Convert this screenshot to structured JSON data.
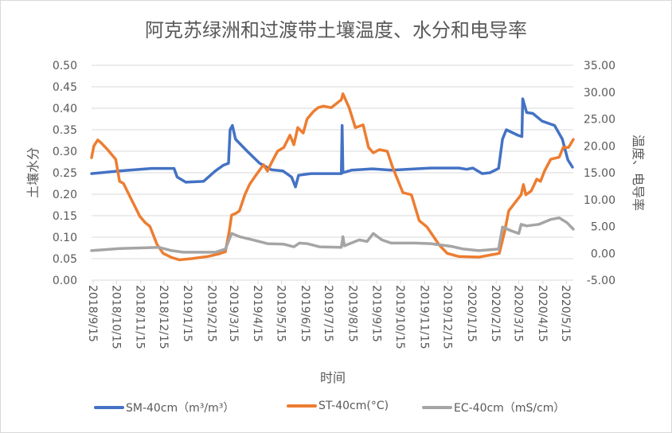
{
  "chart_data": {
    "type": "line",
    "title": "阿克苏绿洲和过渡带土壤温度、水分和电导率",
    "xlabel": "时间",
    "ylabel_left": "土壤水分",
    "ylabel_right": "温度、电导率",
    "ylim_left": [
      0,
      0.5
    ],
    "ylim_right": [
      -5,
      35
    ],
    "yticks_left": [
      "0.00",
      "0.05",
      "0.10",
      "0.15",
      "0.20",
      "0.25",
      "0.30",
      "0.35",
      "0.40",
      "0.45",
      "0.50"
    ],
    "yticks_right": [
      "-5.00",
      "0.00",
      "5.00",
      "10.00",
      "15.00",
      "20.00",
      "25.00",
      "30.00",
      "35.00"
    ],
    "xlim": [
      "2018-09-13",
      "2020-05-24"
    ],
    "xticks": [
      "2018/9/15",
      "2018/10/15",
      "2018/11/15",
      "2018/12/15",
      "2019/1/15",
      "2019/2/15",
      "2019/3/15",
      "2019/4/15",
      "2019/5/15",
      "2019/6/15",
      "2019/7/15",
      "2019/8/15",
      "2019/9/15",
      "2019/10/15",
      "2019/11/15",
      "2019/12/15",
      "2020/1/15",
      "2020/2/15",
      "2020/3/15",
      "2020/4/15",
      "2020/5/15"
    ],
    "grid": true,
    "legend_position": "bottom",
    "series": [
      {
        "name": "SM-40cm（m³/m³）",
        "axis": "left",
        "color": "#4472c4",
        "points": [
          [
            "2018-09-13",
            0.248
          ],
          [
            "2018-10-19",
            0.254
          ],
          [
            "2018-11-29",
            0.26
          ],
          [
            "2018-12-28",
            0.26
          ],
          [
            "2019-01-01",
            0.24
          ],
          [
            "2019-01-12",
            0.228
          ],
          [
            "2019-02-04",
            0.23
          ],
          [
            "2019-02-19",
            0.254
          ],
          [
            "2019-03-01",
            0.267
          ],
          [
            "2019-03-08",
            0.272
          ],
          [
            "2019-03-10",
            0.35
          ],
          [
            "2019-03-13",
            0.36
          ],
          [
            "2019-03-17",
            0.328
          ],
          [
            "2019-04-01",
            0.3
          ],
          [
            "2019-04-17",
            0.272
          ],
          [
            "2019-05-02",
            0.257
          ],
          [
            "2019-05-17",
            0.254
          ],
          [
            "2019-05-28",
            0.24
          ],
          [
            "2019-06-02",
            0.217
          ],
          [
            "2019-06-06",
            0.244
          ],
          [
            "2019-06-22",
            0.248
          ],
          [
            "2019-07-31",
            0.248
          ],
          [
            "2019-08-01",
            0.36
          ],
          [
            "2019-08-02",
            0.25
          ],
          [
            "2019-08-13",
            0.256
          ],
          [
            "2019-09-09",
            0.259
          ],
          [
            "2019-10-03",
            0.256
          ],
          [
            "2019-11-23",
            0.261
          ],
          [
            "2019-12-29",
            0.261
          ],
          [
            "2020-01-08",
            0.258
          ],
          [
            "2020-01-16",
            0.261
          ],
          [
            "2020-01-28",
            0.248
          ],
          [
            "2020-02-07",
            0.25
          ],
          [
            "2020-02-18",
            0.26
          ],
          [
            "2020-02-23",
            0.328
          ],
          [
            "2020-02-28",
            0.35
          ],
          [
            "2020-03-14",
            0.337
          ],
          [
            "2020-03-19",
            0.334
          ],
          [
            "2020-03-20",
            0.422
          ],
          [
            "2020-03-25",
            0.39
          ],
          [
            "2020-04-02",
            0.388
          ],
          [
            "2020-04-14",
            0.37
          ],
          [
            "2020-04-30",
            0.36
          ],
          [
            "2020-05-10",
            0.328
          ],
          [
            "2020-05-17",
            0.28
          ],
          [
            "2020-05-23",
            0.263
          ]
        ]
      },
      {
        "name": "ST-40cm(°C)",
        "axis": "right",
        "color": "#ed7d31",
        "points": [
          [
            "2018-09-13",
            17.8
          ],
          [
            "2018-09-16",
            20.0
          ],
          [
            "2018-09-21",
            21.1
          ],
          [
            "2018-09-25",
            20.6
          ],
          [
            "2018-10-03",
            19.4
          ],
          [
            "2018-10-14",
            17.5
          ],
          [
            "2018-10-19",
            13.4
          ],
          [
            "2018-10-24",
            13.0
          ],
          [
            "2018-11-03",
            10.1
          ],
          [
            "2018-11-14",
            6.9
          ],
          [
            "2018-11-21",
            5.7
          ],
          [
            "2018-11-27",
            5.0
          ],
          [
            "2018-12-06",
            1.7
          ],
          [
            "2018-12-14",
            0.0
          ],
          [
            "2018-12-25",
            -0.8
          ],
          [
            "2019-01-04",
            -1.2
          ],
          [
            "2019-01-19",
            -1.0
          ],
          [
            "2019-02-09",
            -0.6
          ],
          [
            "2019-02-24",
            -0.1
          ],
          [
            "2019-03-04",
            0.3
          ],
          [
            "2019-03-09",
            4.2
          ],
          [
            "2019-03-12",
            7.1
          ],
          [
            "2019-03-17",
            7.4
          ],
          [
            "2019-03-22",
            7.9
          ],
          [
            "2019-03-29",
            10.9
          ],
          [
            "2019-04-04",
            12.8
          ],
          [
            "2019-04-11",
            14.3
          ],
          [
            "2019-04-22",
            16.5
          ],
          [
            "2019-04-27",
            15.3
          ],
          [
            "2019-05-02",
            16.8
          ],
          [
            "2019-05-10",
            19.0
          ],
          [
            "2019-05-18",
            19.7
          ],
          [
            "2019-05-26",
            22.0
          ],
          [
            "2019-05-31",
            20.2
          ],
          [
            "2019-06-05",
            23.4
          ],
          [
            "2019-06-12",
            22.4
          ],
          [
            "2019-06-17",
            25.0
          ],
          [
            "2019-06-25",
            26.4
          ],
          [
            "2019-07-01",
            27.1
          ],
          [
            "2019-07-08",
            27.4
          ],
          [
            "2019-07-18",
            27.1
          ],
          [
            "2019-07-25",
            27.9
          ],
          [
            "2019-07-31",
            28.6
          ],
          [
            "2019-08-02",
            29.7
          ],
          [
            "2019-08-10",
            27.1
          ],
          [
            "2019-08-18",
            23.4
          ],
          [
            "2019-08-28",
            23.9
          ],
          [
            "2019-09-04",
            19.7
          ],
          [
            "2019-09-10",
            18.7
          ],
          [
            "2019-09-18",
            19.3
          ],
          [
            "2019-09-28",
            19.0
          ],
          [
            "2019-10-05",
            16.0
          ],
          [
            "2019-10-18",
            11.3
          ],
          [
            "2019-10-29",
            10.9
          ],
          [
            "2019-11-08",
            6.1
          ],
          [
            "2019-11-18",
            4.9
          ],
          [
            "2019-12-04",
            1.5
          ],
          [
            "2019-12-14",
            0.0
          ],
          [
            "2019-12-29",
            -0.6
          ],
          [
            "2020-01-24",
            -0.7
          ],
          [
            "2020-02-19",
            0.0
          ],
          [
            "2020-02-26",
            4.2
          ],
          [
            "2020-03-02",
            7.9
          ],
          [
            "2020-03-18",
            10.9
          ],
          [
            "2020-03-21",
            12.8
          ],
          [
            "2020-03-24",
            10.9
          ],
          [
            "2020-03-31",
            11.6
          ],
          [
            "2020-04-07",
            13.8
          ],
          [
            "2020-04-12",
            13.4
          ],
          [
            "2020-04-17",
            15.3
          ],
          [
            "2020-04-25",
            17.5
          ],
          [
            "2020-05-06",
            17.9
          ],
          [
            "2020-05-11",
            19.7
          ],
          [
            "2020-05-18",
            19.7
          ],
          [
            "2020-05-24",
            21.2
          ]
        ]
      },
      {
        "name": "EC-40cm（mS/cm）",
        "axis": "right",
        "color": "#a5a5a5",
        "points": [
          [
            "2018-09-13",
            0.5
          ],
          [
            "2018-10-19",
            0.9
          ],
          [
            "2018-12-09",
            1.1
          ],
          [
            "2018-12-25",
            0.5
          ],
          [
            "2019-01-09",
            0.2
          ],
          [
            "2019-02-19",
            0.2
          ],
          [
            "2019-03-04",
            0.8
          ],
          [
            "2019-03-12",
            3.7
          ],
          [
            "2019-03-22",
            3.1
          ],
          [
            "2019-04-11",
            2.4
          ],
          [
            "2019-04-27",
            1.8
          ],
          [
            "2019-05-18",
            1.7
          ],
          [
            "2019-05-31",
            1.2
          ],
          [
            "2019-06-07",
            1.9
          ],
          [
            "2019-06-17",
            1.8
          ],
          [
            "2019-07-03",
            1.2
          ],
          [
            "2019-07-31",
            1.1
          ],
          [
            "2019-08-02",
            3.1
          ],
          [
            "2019-08-04",
            1.4
          ],
          [
            "2019-08-23",
            2.5
          ],
          [
            "2019-09-02",
            2.2
          ],
          [
            "2019-09-10",
            3.7
          ],
          [
            "2019-09-21",
            2.5
          ],
          [
            "2019-10-03",
            1.9
          ],
          [
            "2019-11-03",
            1.9
          ],
          [
            "2019-11-23",
            1.8
          ],
          [
            "2019-12-19",
            1.3
          ],
          [
            "2020-01-04",
            0.8
          ],
          [
            "2020-01-24",
            0.5
          ],
          [
            "2020-02-18",
            0.8
          ],
          [
            "2020-02-23",
            4.9
          ],
          [
            "2020-03-05",
            4.2
          ],
          [
            "2020-03-15",
            3.7
          ],
          [
            "2020-03-18",
            5.4
          ],
          [
            "2020-03-25",
            5.1
          ],
          [
            "2020-04-10",
            5.4
          ],
          [
            "2020-04-25",
            6.3
          ],
          [
            "2020-05-06",
            6.6
          ],
          [
            "2020-05-16",
            5.7
          ],
          [
            "2020-05-24",
            4.5
          ]
        ]
      }
    ]
  }
}
